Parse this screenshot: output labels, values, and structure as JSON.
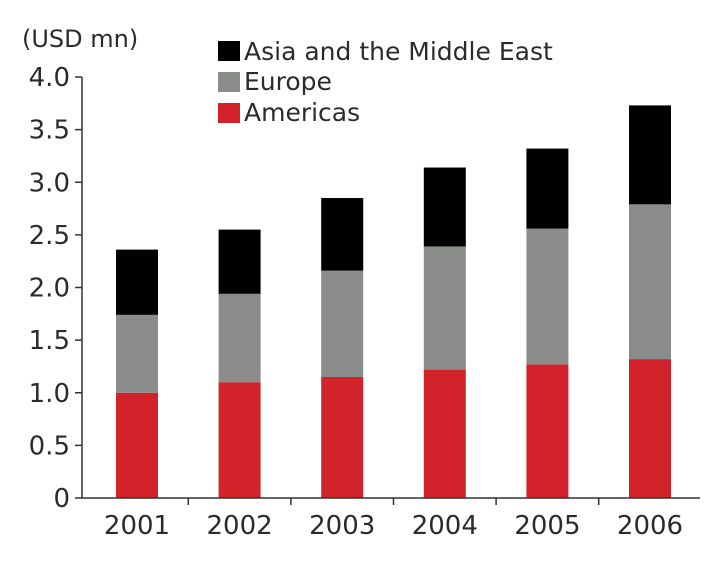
{
  "chart_data": {
    "type": "bar",
    "stacked": true,
    "title": "",
    "xlabel": "",
    "ylabel": "(USD mn)",
    "ylim": [
      0,
      4.0
    ],
    "yticks": [
      "0",
      "0.5",
      "1.0",
      "1.5",
      "2.0",
      "2.5",
      "3.0",
      "3.5",
      "4.0"
    ],
    "categories": [
      "2001",
      "2002",
      "2003",
      "2004",
      "2005",
      "2006"
    ],
    "series": [
      {
        "name": "Americas",
        "color": "#d2232a",
        "values": [
          1.0,
          1.1,
          1.15,
          1.22,
          1.27,
          1.32
        ]
      },
      {
        "name": "Europe",
        "color": "#8a8c8a",
        "values": [
          0.74,
          0.84,
          1.01,
          1.17,
          1.29,
          1.47
        ]
      },
      {
        "name": "Asia and the Middle East",
        "color": "#000000",
        "values": [
          0.62,
          0.61,
          0.69,
          0.75,
          0.76,
          0.94
        ]
      }
    ],
    "legend": {
      "position": "top-left",
      "order": [
        "Asia and the Middle East",
        "Europe",
        "Americas"
      ]
    },
    "grid": false
  }
}
